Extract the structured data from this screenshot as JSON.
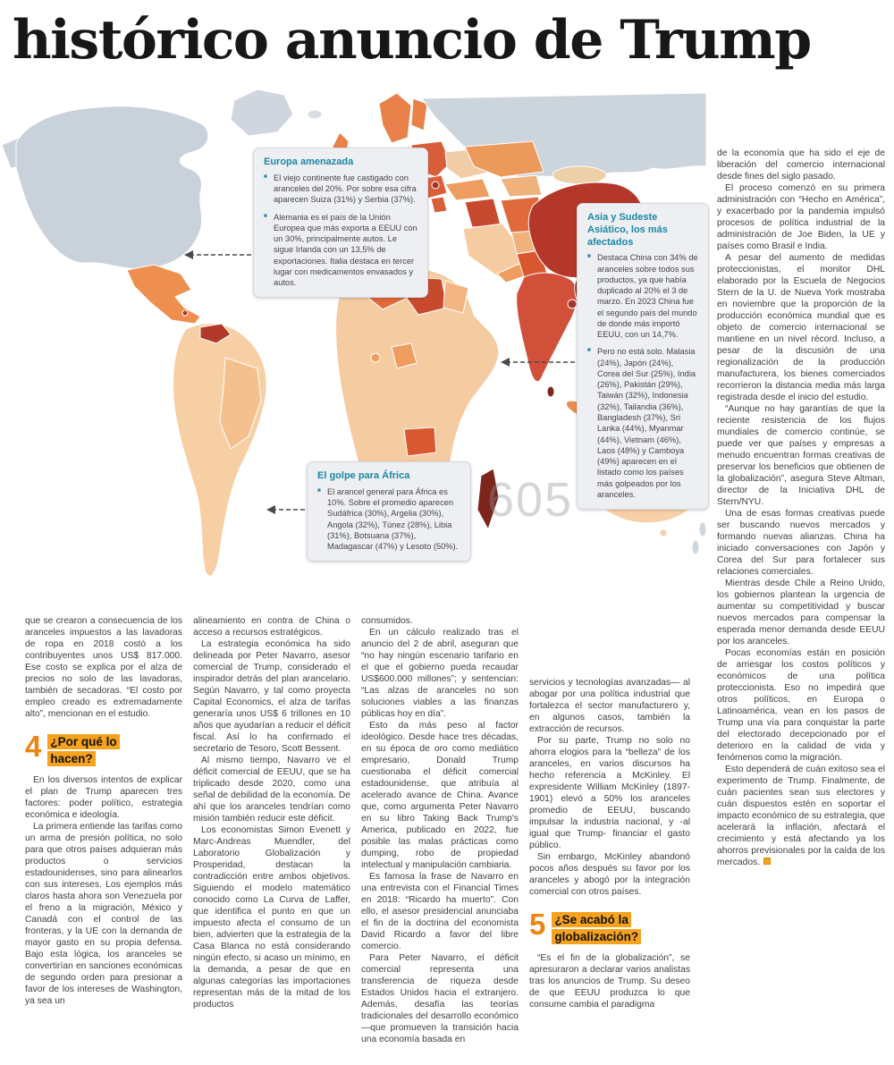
{
  "headline": "histórico anuncio de Trump",
  "watermark": "605",
  "colors": {
    "accent_orange": "#f6a21c",
    "section_number_orange": "#ee8413",
    "callout_teal": "#1d87a5",
    "excluded_gray": "#c9d1da",
    "map_scale": [
      "#f7d0a7",
      "#f0b27c",
      "#ec8c4e",
      "#e06a3b",
      "#c84a2e",
      "#a93226",
      "#7d241b"
    ]
  },
  "callouts": {
    "europa": {
      "title": "Europa amenazada",
      "bullets": [
        "El viejo continente fue castigado con aranceles del 20%. Por sobre esa cifra aparecen Suiza (31%) y Serbia (37%).",
        "Alemania es el país de la Unión Europea que más exporta a EEUU con un 30%, principalmente autos. Le sigue Irlanda con un 13,5% de exportaciones. Italia destaca en tercer lugar con medicamentos envasados y autos."
      ]
    },
    "asia": {
      "title": "Asia y Sudeste Asiático, los más afectados",
      "bullets": [
        "Destaca China con 34% de aranceles sobre todos sus productos, ya que había duplicado al 20% el 3 de marzo. En 2023 China fue el segundo país del mundo de donde más importó EEUU, con un 14,7%.",
        "Pero no está solo. Malasia (24%), Japón (24%), Corea del Sur (25%), India (26%), Pakistán (29%), Taiwán (32%), Indonesia (32%), Tailandia (36%), Bangladesh (37%), Sri Lanka (44%), Myanmar (44%), Vietnam (46%), Laos (48%) y Camboya (49%) aparecen en el listado como los países más golpeados por los aranceles."
      ]
    },
    "africa": {
      "title": "El golpe para África",
      "bullets": [
        "El arancel general para África es 10%. Sobre el promedio aparecen Sudáfrica (30%), Argelia (30%), Angola (32%), Túnez (28%), Libia (31%), Botsuana (37%), Madagascar (47%) y Lesoto (50%)."
      ]
    }
  },
  "sections": {
    "s4": {
      "number": "4",
      "title": "¿Por qué lo hacen?"
    },
    "s5": {
      "number": "5",
      "title": "¿Se acabó la globalización?"
    }
  },
  "body": {
    "col1_top": [
      "que se crearon a consecuencia de los aranceles impuestos a las lavadoras de ropa en 2018 costó a los contribuyentes unos US$ 817.000. Ese costo se explica por el alza de precios no solo de las lavadoras, también de secadoras. “El costo por empleo creado es extremadamente alto”, mencionan en el estudio."
    ],
    "col1_bottom": [
      "En los diversos intentos de explicar el plan de Trump aparecen tres factores: poder político, estrategia económica e ideología.",
      "La primera entiende las tarifas como un arma de presión política, no solo para que otros países adquieran más productos o servicios estadounidenses, sino para alinearlos con sus intereses. Los ejemplos más claros hasta ahora son Venezuela por el freno a la migración, México y Canadá con el control de las fronteras, y la UE con la demanda de mayor gasto en su propia defensa. Bajo esta lógica, los aranceles se convertirían en sanciones económicas de segundo orden para presionar a favor de los intereses de Washington, ya sea un"
    ],
    "col2": [
      "alineamiento en contra de China o acceso a recursos estratégicos.",
      "La estrategia económica ha sido delineada por Peter Navarro, asesor comercial de Trump, considerado el inspirador detrás del plan arancelario. Según Navarro, y tal como proyecta Capital Economics, el alza de tarifas generaría unos US$ 6 trillones en 10 años que ayudarían a reducir el déficit fiscal. Así lo ha confirmado el secretario de Tesoro, Scott Bessent.",
      "Al mismo tiempo, Navarro ve el déficit comercial de EEUU, que se ha triplicado desde 2020, como una señal de debilidad de la economía. De ahí que los aranceles tendrían como misión también reducir este déficit.",
      "Los economistas Simon Evenett y Marc-Andreas Muendler, del Laboratorio Globalización y Prosperidad, destacan la contradicción entre ambos objetivos. Siguiendo el modelo matemático conocido como La Curva de Laffer, que identifica el punto en que un impuesto afecta el consumo de un bien, advierten que la estrategia de la Casa Blanca no está considerando ningún efecto, si acaso un mínimo, en la demanda, a pesar de que en algunas categorías las importaciones representan más de la mitad de los productos"
    ],
    "col3": [
      "consumidos.",
      "En un cálculo realizado tras el anuncio del 2 de abril, aseguran que “no hay ningún escenario tarifario en el que el gobierno pueda recaudar US$600.000 millones”; y sentencian: “Las alzas de aranceles no son soluciones viables a las finanzas públicas hoy en día”.",
      "Esto da más peso al factor ideológico. Desde hace tres décadas, en su época de oro como mediático empresario, Donald Trump cuestionaba el déficit comercial estadounidense, que atribuía al acelerado avance de China. Avance que, como argumenta Peter Navarro en su libro Taking Back Trump's America, publicado en 2022, fue posible las malas prácticas como dumping, robo de propiedad intelectual y manipulación cambiaria.",
      "Es famosa la frase de Navarro en una entrevista con el Financial Times en 2018: “Ricardo ha muerto”. Con ello, el asesor presidencial anunciaba el fin de la doctrina del economista David Ricardo a favor del libre comercio.",
      "Para Peter Navarro, el déficit comercial representa una transferencia de riqueza desde Estados Unidos hacia el extranjero. Además, desafía las teorías tradicionales del desarrollo económico —que promueven la transición hacia una economía basada en"
    ],
    "col4_top": [
      "servicios y tecnologías avanzadas— al abogar por una política industrial que fortalezca el sector manufacturero y, en algunos casos, también la extracción de recursos.",
      "Por su parte, Trump no solo no ahorra elogios para la “belleza” de los aranceles, en varios discursos ha hecho referencia a McKinley. El expresidente William McKinley (1897-1901) elevó a 50% los aranceles promedio de EEUU, buscando impulsar la industria nacional, y -al igual que Trump- financiar el gasto público.",
      "Sin embargo, McKinley abandonó pocos años después su favor por los aranceles y abogó por la integración comercial con otros países."
    ],
    "col4_bottom": [
      "“Es el fin de la globalización”, se apresuraron a declarar varios analistas tras los anuncios de Trump. Su deseo de que EEUU produzca lo que consume cambia el paradigma"
    ],
    "col5": [
      "de la economía que ha sido el eje de liberación del comercio internacional desde fines del siglo pasado.",
      "El proceso comenzó en su primera administración con “Hecho en América”, y exacerbado por la pandemia impulsó procesos de política industrial de la administración de Joe Biden, la UE y países como Brasil e India.",
      "A pesar del aumento de medidas proteccionistas, el monitor DHL elaborado por la Escuela de Negocios Stern de la U. de Nueva York mostraba en noviembre que la proporción de la producción económica mundial que es objeto de comercio internacional se mantiene en un nivel récord. Incluso, a pesar de la discusión de una regionalización de la producción manufacturera, los bienes comerciados recorrieron la distancia media más larga registrada desde el inicio del estudio.",
      "“Aunque no hay garantías de que la reciente resistencia de los flujos mundiales de comercio continúe, se puede ver que países y empresas a menudo encuentran formas creativas de preservar los beneficios que obtienen de la globalización”, asegura Steve Altman, director de la Iniciativa DHL de Stern/NYU.",
      "Una de esas formas creativas puede ser buscando nuevos mercados y formando nuevas alianzas. China ha iniciado conversaciones con Japón y Corea del Sur para fortalecer sus relaciones comerciales.",
      "Mientras desde Chile a Reino Unido, los gobiernos plantean la urgencia de aumentar su competitividad y buscar nuevos mercados para compensar la esperada menor demanda desde EEUU por los aranceles.",
      "Pocas economías están en posición de arriesgar los costos políticos y económicos de una política proteccionista. Eso no impedirá que otros políticos, en Europa o Latinoamérica, vean en los pasos de Trump una vía para conquistar la parte del electorado decepcionado por el deterioro en la calidad de vida y fenómenos como la migración.",
      "Esto dependerá de cuán exitoso sea el experimento de Trump. Finalmente, de cuán pacientes sean sus electores y cuán dispuestos estén en soportar el impacto económico de su estrategia, que acelerará la inflación, afectará el crecimiento y está afectando ya los ahorros previsionales por la caída de los mercados."
    ]
  }
}
